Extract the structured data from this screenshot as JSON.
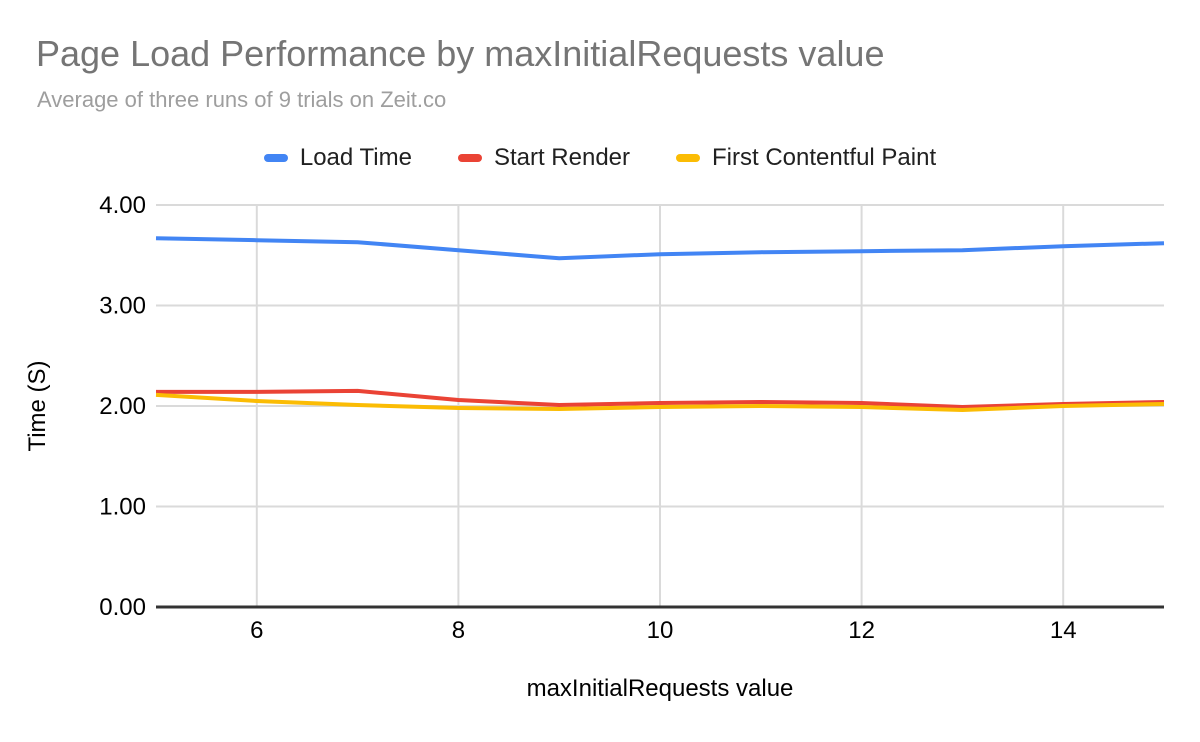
{
  "header": {
    "title": "Page Load Performance by maxInitialRequests value",
    "subtitle": "Average of three runs of 9 trials on Zeit.co"
  },
  "chart_data": {
    "type": "line",
    "title": "Page Load Performance by maxInitialRequests value",
    "subtitle": "Average of three runs of 9 trials on Zeit.co",
    "xlabel": "maxInitialRequests value",
    "ylabel": "Time (S)",
    "xlim": [
      5,
      15
    ],
    "ylim": [
      0,
      4
    ],
    "grid": true,
    "legend_position": "top",
    "x": [
      5,
      6,
      7,
      8,
      9,
      10,
      11,
      12,
      13,
      14,
      15
    ],
    "x_ticks": [
      {
        "value": 6,
        "label": "6"
      },
      {
        "value": 8,
        "label": "8"
      },
      {
        "value": 10,
        "label": "10"
      },
      {
        "value": 12,
        "label": "12"
      },
      {
        "value": 14,
        "label": "14"
      }
    ],
    "y_ticks": [
      {
        "value": 0,
        "label": "0.00"
      },
      {
        "value": 1,
        "label": "1.00"
      },
      {
        "value": 2,
        "label": "2.00"
      },
      {
        "value": 3,
        "label": "3.00"
      },
      {
        "value": 4,
        "label": "4.00"
      }
    ],
    "series": [
      {
        "name": "Load Time",
        "color": "#4285f4",
        "values": [
          3.67,
          3.65,
          3.63,
          3.55,
          3.47,
          3.51,
          3.53,
          3.54,
          3.55,
          3.59,
          3.62
        ]
      },
      {
        "name": "Start Render",
        "color": "#ea4335",
        "values": [
          2.14,
          2.14,
          2.15,
          2.06,
          2.01,
          2.03,
          2.04,
          2.03,
          1.99,
          2.02,
          2.04
        ]
      },
      {
        "name": "First Contentful Paint",
        "color": "#fbbc04",
        "values": [
          2.11,
          2.05,
          2.01,
          1.98,
          1.97,
          1.99,
          2.0,
          1.99,
          1.96,
          2.0,
          2.02
        ]
      }
    ],
    "colors": {
      "gridline": "#dadada",
      "baseline": "#333333",
      "axis_text": "#000000",
      "title": "#757575",
      "subtitle": "#9e9e9e",
      "legend_text": "#212121"
    }
  }
}
